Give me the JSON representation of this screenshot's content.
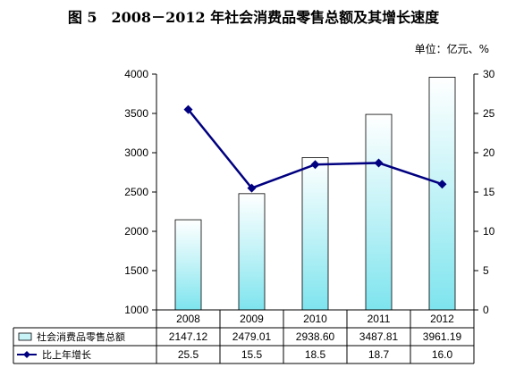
{
  "header": {
    "title": "图 5　2008－2012 年社会消费品零售总额及其增长速度",
    "unit": "单位：亿元、%"
  },
  "colors": {
    "bar_top": "#ffffff",
    "bar_mid": "#c8f4f8",
    "bar_bottom": "#7ee4ee",
    "bar_stroke": "#000000",
    "line": "#000080",
    "grid": "#000000"
  },
  "chart_data": {
    "type": "bar+line",
    "categories": [
      "2008",
      "2009",
      "2010",
      "2011",
      "2012"
    ],
    "series": [
      {
        "name": "社会消费品零售总额",
        "type": "bar",
        "axis": "left",
        "values": [
          2147.12,
          2479.01,
          2938.6,
          3487.81,
          3961.19
        ],
        "labels": [
          "2147.12",
          "2479.01",
          "2938.60",
          "3487.81",
          "3961.19"
        ]
      },
      {
        "name": "比上年增长",
        "type": "line",
        "axis": "right",
        "values": [
          25.5,
          15.5,
          18.5,
          18.7,
          16.0
        ],
        "labels": [
          "25.5",
          "15.5",
          "18.5",
          "18.7",
          "16.0"
        ]
      }
    ],
    "ylim_left": [
      1000,
      4000
    ],
    "yticks_left": [
      "1000",
      "1500",
      "2000",
      "2500",
      "3000",
      "3500",
      "4000"
    ],
    "ylim_right": [
      0,
      30
    ],
    "yticks_right": [
      "0",
      "5",
      "10",
      "15",
      "20",
      "25",
      "30"
    ],
    "grid": false,
    "legend": "data-table"
  }
}
